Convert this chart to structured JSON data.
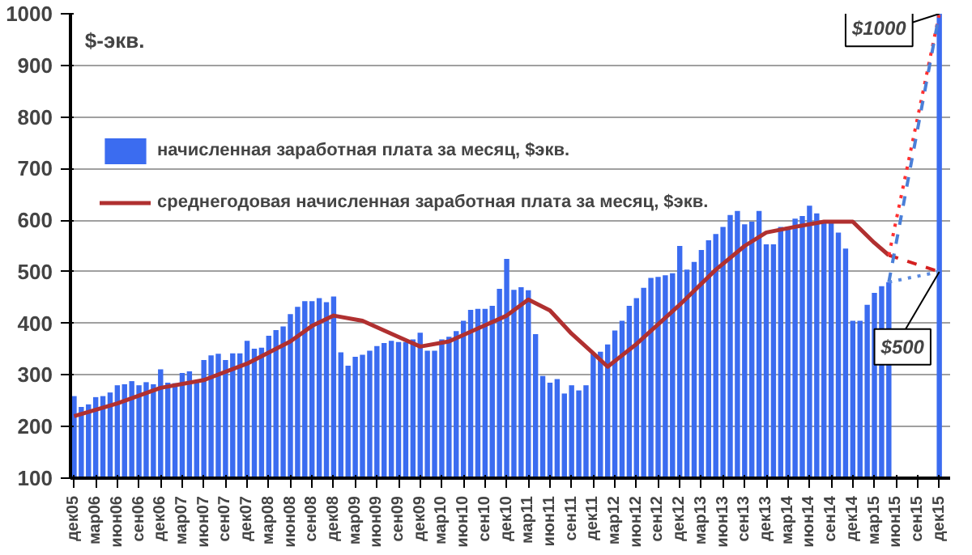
{
  "chart_data": {
    "type": "bar",
    "ylabel": "$-экв.",
    "x": [
      "2005-12",
      "2006-01",
      "2006-02",
      "2006-03",
      "2006-04",
      "2006-05",
      "2006-06",
      "2006-07",
      "2006-08",
      "2006-09",
      "2006-10",
      "2006-11",
      "2006-12",
      "2007-01",
      "2007-02",
      "2007-03",
      "2007-04",
      "2007-05",
      "2007-06",
      "2007-07",
      "2007-08",
      "2007-09",
      "2007-10",
      "2007-11",
      "2007-12",
      "2008-01",
      "2008-02",
      "2008-03",
      "2008-04",
      "2008-05",
      "2008-06",
      "2008-07",
      "2008-08",
      "2008-09",
      "2008-10",
      "2008-11",
      "2008-12",
      "2009-01",
      "2009-02",
      "2009-03",
      "2009-04",
      "2009-05",
      "2009-06",
      "2009-07",
      "2009-08",
      "2009-09",
      "2009-10",
      "2009-11",
      "2009-12",
      "2010-01",
      "2010-02",
      "2010-03",
      "2010-04",
      "2010-05",
      "2010-06",
      "2010-07",
      "2010-08",
      "2010-09",
      "2010-10",
      "2010-11",
      "2010-12",
      "2011-01",
      "2011-02",
      "2011-03",
      "2011-04",
      "2011-05",
      "2011-06",
      "2011-07",
      "2011-08",
      "2011-09",
      "2011-10",
      "2011-11",
      "2011-12",
      "2012-01",
      "2012-02",
      "2012-03",
      "2012-04",
      "2012-05",
      "2012-06",
      "2012-07",
      "2012-08",
      "2012-09",
      "2012-10",
      "2012-11",
      "2012-12",
      "2013-01",
      "2013-02",
      "2013-03",
      "2013-04",
      "2013-05",
      "2013-06",
      "2013-07",
      "2013-08",
      "2013-09",
      "2013-10",
      "2013-11",
      "2013-12",
      "2014-01",
      "2014-02",
      "2014-03",
      "2014-04",
      "2014-05",
      "2014-06",
      "2014-07",
      "2014-08",
      "2014-09",
      "2014-10",
      "2014-11",
      "2014-12",
      "2015-01",
      "2015-02",
      "2015-03",
      "2015-04",
      "2015-05",
      "2015-06",
      "2015-07",
      "2015-08",
      "2015-09",
      "2015-10",
      "2015-11",
      "2015-12"
    ],
    "series": [
      {
        "name": "начисленная заработная плата за месяц, $экв.",
        "color": "#3b6cf0",
        "values": [
          259,
          238,
          243,
          257,
          259,
          266,
          280,
          282,
          288,
          280,
          286,
          282,
          311,
          285,
          284,
          304,
          307,
          285,
          329,
          338,
          341,
          329,
          342,
          342,
          366,
          351,
          353,
          376,
          387,
          394,
          418,
          432,
          443,
          443,
          449,
          441,
          452,
          344,
          318,
          335,
          339,
          347,
          356,
          362,
          366,
          364,
          364,
          369,
          382,
          347,
          347,
          369,
          374,
          385,
          405,
          426,
          428,
          428,
          434,
          467,
          525,
          465,
          470,
          464,
          379,
          298,
          285,
          292,
          264,
          280,
          270,
          280,
          342,
          345,
          359,
          386,
          405,
          434,
          449,
          469,
          488,
          490,
          493,
          497,
          550,
          504,
          519,
          542,
          561,
          573,
          587,
          610,
          618,
          592,
          597,
          618,
          553,
          553,
          587,
          587,
          603,
          608,
          628,
          613,
          600,
          597,
          576,
          545,
          405,
          405,
          436,
          459,
          472,
          480,
          null,
          null,
          null,
          null,
          null,
          null,
          1000
        ]
      },
      {
        "name": "среднегодовая начисленная заработная плата за месяц, $экв.",
        "type": "line",
        "color": "#b03030",
        "line_style": "solid",
        "x": [
          "2005-12",
          "2006-06",
          "2006-12",
          "2007-06",
          "2007-12",
          "2008-06",
          "2008-09",
          "2008-12",
          "2009-04",
          "2009-08",
          "2009-12",
          "2010-04",
          "2010-08",
          "2010-12",
          "2011-03",
          "2011-06",
          "2011-09",
          "2011-12",
          "2012-02",
          "2012-06",
          "2012-12",
          "2013-05",
          "2013-09",
          "2013-12",
          "2014-04",
          "2014-08",
          "2014-12",
          "2015-03",
          "2015-05"
        ],
        "values": [
          220,
          245,
          275,
          290,
          322,
          365,
          395,
          415,
          405,
          380,
          355,
          365,
          390,
          415,
          446,
          425,
          380,
          342,
          316,
          360,
          436,
          504,
          550,
          576,
          587,
          597,
          597,
          556,
          532
        ]
      },
      {
        "type": "line",
        "color": "#d42020",
        "line_style": "dashed",
        "x": [
          "2015-05",
          "2015-12"
        ],
        "values": [
          532,
          500
        ]
      },
      {
        "type": "line",
        "color": "#ff3030",
        "line_style": "dotted",
        "x": [
          "2015-05",
          "2015-12"
        ],
        "values": [
          532,
          1000
        ]
      },
      {
        "type": "line",
        "color": "#4a7fd8",
        "line_style": "dashed",
        "x": [
          "2015-05",
          "2015-12"
        ],
        "values": [
          480,
          1000
        ]
      },
      {
        "type": "line",
        "color": "#5a8ae0",
        "line_style": "dotted",
        "x": [
          "2015-05",
          "2015-12"
        ],
        "values": [
          480,
          500
        ]
      }
    ],
    "xlim": [
      "2005-11-16",
      "2016-01-16"
    ],
    "xticks": [
      {
        "value": "2005-12",
        "label": "дек05"
      },
      {
        "value": "2006-03",
        "label": "мар06"
      },
      {
        "value": "2006-06",
        "label": "июн06"
      },
      {
        "value": "2006-09",
        "label": "сен06"
      },
      {
        "value": "2006-12",
        "label": "дек06"
      },
      {
        "value": "2007-03",
        "label": "мар07"
      },
      {
        "value": "2007-06",
        "label": "июн07"
      },
      {
        "value": "2007-09",
        "label": "сен07"
      },
      {
        "value": "2007-12",
        "label": "дек07"
      },
      {
        "value": "2008-03",
        "label": "мар08"
      },
      {
        "value": "2008-06",
        "label": "июн08"
      },
      {
        "value": "2008-09",
        "label": "сен08"
      },
      {
        "value": "2008-12",
        "label": "дек08"
      },
      {
        "value": "2009-03",
        "label": "мар09"
      },
      {
        "value": "2009-06",
        "label": "июн09"
      },
      {
        "value": "2009-09",
        "label": "сен09"
      },
      {
        "value": "2009-12",
        "label": "дек09"
      },
      {
        "value": "2010-03",
        "label": "мар10"
      },
      {
        "value": "2010-06",
        "label": "июн10"
      },
      {
        "value": "2010-09",
        "label": "сен10"
      },
      {
        "value": "2010-12",
        "label": "дек10"
      },
      {
        "value": "2011-03",
        "label": "мар11"
      },
      {
        "value": "2011-06",
        "label": "июн11"
      },
      {
        "value": "2011-09",
        "label": "сен11"
      },
      {
        "value": "2011-12",
        "label": "дек11"
      },
      {
        "value": "2012-03",
        "label": "мар12"
      },
      {
        "value": "2012-06",
        "label": "июн12"
      },
      {
        "value": "2012-09",
        "label": "сен12"
      },
      {
        "value": "2012-12",
        "label": "дек12"
      },
      {
        "value": "2013-03",
        "label": "мар13"
      },
      {
        "value": "2013-06",
        "label": "июн13"
      },
      {
        "value": "2013-09",
        "label": "сен13"
      },
      {
        "value": "2013-12",
        "label": "дек13"
      },
      {
        "value": "2014-03",
        "label": "мар14"
      },
      {
        "value": "2014-06",
        "label": "июн14"
      },
      {
        "value": "2014-09",
        "label": "сен14"
      },
      {
        "value": "2014-12",
        "label": "дек14"
      },
      {
        "value": "2015-03",
        "label": "мар15"
      },
      {
        "value": "2015-06",
        "label": "июн15"
      },
      {
        "value": "2015-09",
        "label": "сен15"
      },
      {
        "value": "2015-12",
        "label": "дек15"
      }
    ],
    "ylim": [
      100,
      1000
    ],
    "yticks": [
      100,
      200,
      300,
      400,
      500,
      600,
      700,
      800,
      900,
      1000
    ],
    "grid": "y",
    "legend": "top left",
    "annotations": [
      {
        "text": "$1000",
        "x": "2015-12",
        "y": 1000
      },
      {
        "text": "$500",
        "x": "2015-12",
        "y": 500
      }
    ]
  }
}
